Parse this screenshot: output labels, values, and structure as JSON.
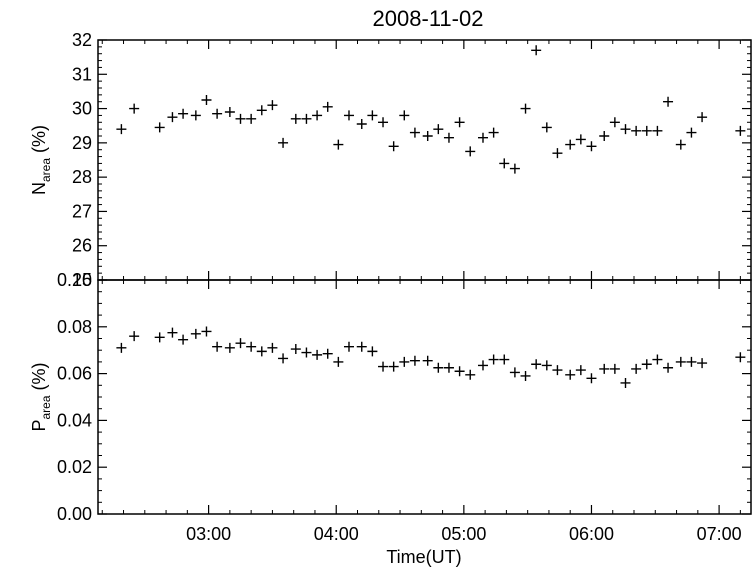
{
  "chart_data": [
    {
      "type": "scatter",
      "title": "2008-11-02",
      "ylabel": {
        "main": "N",
        "sub": "area",
        "suffix": " (%)"
      },
      "ylim": [
        25,
        32
      ],
      "yticks": [
        25,
        26,
        27,
        28,
        29,
        30,
        31,
        32
      ],
      "xlim": [
        "02:08",
        "07:15"
      ],
      "marker": "plus",
      "color": "#000000",
      "points": [
        [
          "02:19",
          29.4
        ],
        [
          "02:25",
          30.0
        ],
        [
          "02:37",
          29.45
        ],
        [
          "02:43",
          29.75
        ],
        [
          "02:48",
          29.85
        ],
        [
          "02:54",
          29.8
        ],
        [
          "02:59",
          30.25
        ],
        [
          "03:04",
          29.85
        ],
        [
          "03:10",
          29.9
        ],
        [
          "03:15",
          29.7
        ],
        [
          "03:20",
          29.7
        ],
        [
          "03:25",
          29.95
        ],
        [
          "03:30",
          30.1
        ],
        [
          "03:35",
          29.0
        ],
        [
          "03:41",
          29.7
        ],
        [
          "03:46",
          29.7
        ],
        [
          "03:51",
          29.8
        ],
        [
          "03:56",
          30.05
        ],
        [
          "04:01",
          28.95
        ],
        [
          "04:06",
          29.8
        ],
        [
          "04:12",
          29.55
        ],
        [
          "04:17",
          29.8
        ],
        [
          "04:22",
          29.6
        ],
        [
          "04:27",
          28.9
        ],
        [
          "04:32",
          29.8
        ],
        [
          "04:37",
          29.3
        ],
        [
          "04:43",
          29.2
        ],
        [
          "04:48",
          29.4
        ],
        [
          "04:53",
          29.15
        ],
        [
          "04:58",
          29.6
        ],
        [
          "05:03",
          28.75
        ],
        [
          "05:09",
          29.15
        ],
        [
          "05:14",
          29.3
        ],
        [
          "05:19",
          28.4
        ],
        [
          "05:24",
          28.25
        ],
        [
          "05:29",
          30.0
        ],
        [
          "05:34",
          31.7
        ],
        [
          "05:39",
          29.45
        ],
        [
          "05:44",
          28.7
        ],
        [
          "05:50",
          28.95
        ],
        [
          "05:55",
          29.1
        ],
        [
          "06:00",
          28.9
        ],
        [
          "06:06",
          29.2
        ],
        [
          "06:11",
          29.6
        ],
        [
          "06:16",
          29.4
        ],
        [
          "06:21",
          29.35
        ],
        [
          "06:26",
          29.35
        ],
        [
          "06:31",
          29.35
        ],
        [
          "06:36",
          30.2
        ],
        [
          "06:42",
          28.95
        ],
        [
          "06:47",
          29.3
        ],
        [
          "06:52",
          29.75
        ],
        [
          "07:10",
          29.35
        ]
      ]
    },
    {
      "type": "scatter",
      "ylabel": {
        "main": "P",
        "sub": "area",
        "suffix": " (%)"
      },
      "xlabel": "Time(UT)",
      "ylim": [
        0.0,
        0.1
      ],
      "yticks": [
        0.0,
        0.02,
        0.04,
        0.06,
        0.08,
        0.1
      ],
      "ytick_labels": [
        "0.00",
        "0.02",
        "0.04",
        "0.06",
        "0.08",
        "0.10"
      ],
      "xlim": [
        "02:08",
        "07:15"
      ],
      "xticks": [
        "03:00",
        "04:00",
        "05:00",
        "06:00",
        "07:00"
      ],
      "marker": "plus",
      "color": "#000000",
      "points": [
        [
          "02:19",
          0.071
        ],
        [
          "02:25",
          0.076
        ],
        [
          "02:37",
          0.0755
        ],
        [
          "02:43",
          0.0775
        ],
        [
          "02:48",
          0.0745
        ],
        [
          "02:54",
          0.077
        ],
        [
          "02:59",
          0.078
        ],
        [
          "03:04",
          0.0715
        ],
        [
          "03:10",
          0.071
        ],
        [
          "03:15",
          0.073
        ],
        [
          "03:20",
          0.0715
        ],
        [
          "03:25",
          0.0695
        ],
        [
          "03:30",
          0.071
        ],
        [
          "03:35",
          0.0665
        ],
        [
          "03:41",
          0.0705
        ],
        [
          "03:46",
          0.069
        ],
        [
          "03:51",
          0.068
        ],
        [
          "03:56",
          0.0685
        ],
        [
          "04:01",
          0.065
        ],
        [
          "04:06",
          0.0715
        ],
        [
          "04:12",
          0.0715
        ],
        [
          "04:17",
          0.0695
        ],
        [
          "04:22",
          0.063
        ],
        [
          "04:27",
          0.063
        ],
        [
          "04:32",
          0.065
        ],
        [
          "04:37",
          0.0655
        ],
        [
          "04:43",
          0.0655
        ],
        [
          "04:48",
          0.0625
        ],
        [
          "04:53",
          0.0625
        ],
        [
          "04:58",
          0.061
        ],
        [
          "05:03",
          0.0595
        ],
        [
          "05:09",
          0.0635
        ],
        [
          "05:14",
          0.066
        ],
        [
          "05:19",
          0.066
        ],
        [
          "05:24",
          0.0605
        ],
        [
          "05:29",
          0.059
        ],
        [
          "05:34",
          0.064
        ],
        [
          "05:39",
          0.0635
        ],
        [
          "05:44",
          0.0615
        ],
        [
          "05:50",
          0.0595
        ],
        [
          "05:55",
          0.0615
        ],
        [
          "06:00",
          0.058
        ],
        [
          "06:06",
          0.062
        ],
        [
          "06:11",
          0.062
        ],
        [
          "06:16",
          0.056
        ],
        [
          "06:21",
          0.062
        ],
        [
          "06:26",
          0.064
        ],
        [
          "06:31",
          0.066
        ],
        [
          "06:36",
          0.0625
        ],
        [
          "06:42",
          0.065
        ],
        [
          "06:47",
          0.065
        ],
        [
          "06:52",
          0.0645
        ],
        [
          "07:10",
          0.067
        ]
      ]
    }
  ]
}
